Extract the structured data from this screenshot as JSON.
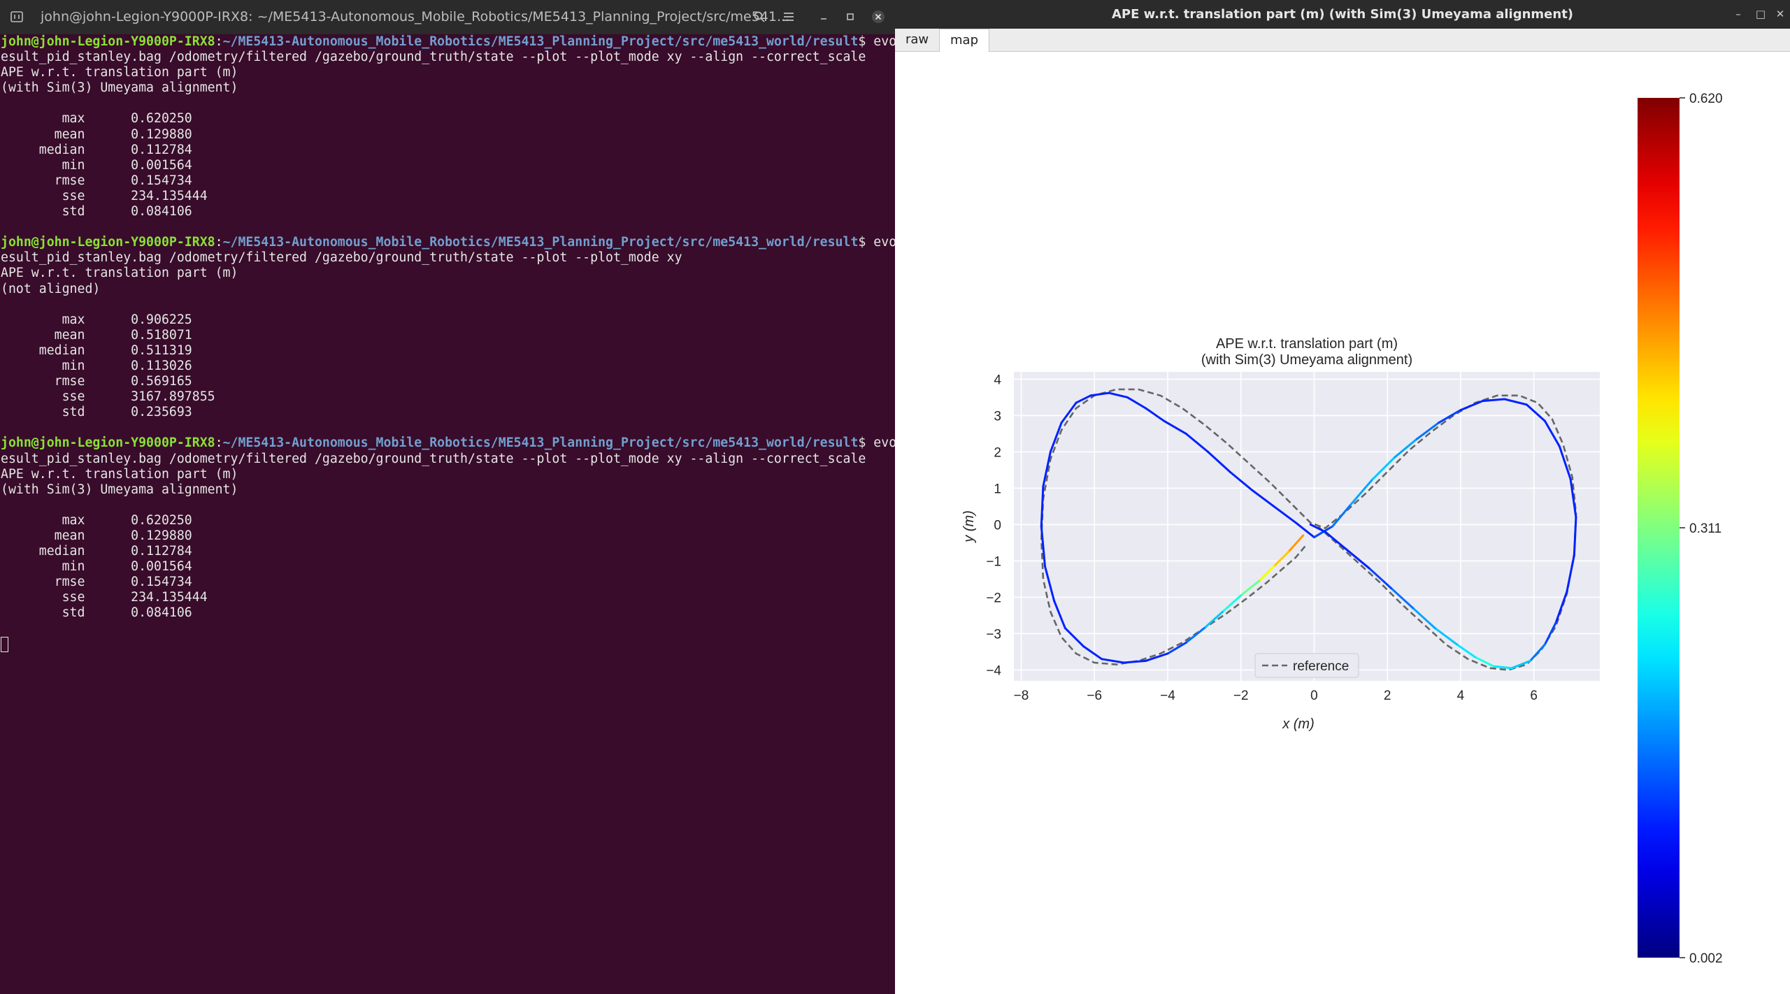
{
  "terminal": {
    "title": "john@john-Legion-Y9000P-IRX8: ~/ME5413-Autonomous_Mobile_Robotics/ME5413_Planning_Project/src/me541...",
    "prompt_user": "john@john-Legion-Y9000P-IRX8",
    "prompt_path": "~/ME5413-Autonomous_Mobile_Robotics/ME5413_Planning_Project/src/me5413_world/result",
    "blocks": [
      {
        "command": "evo_ape bag result_pid_stanley.bag /odometry/filtered /gazebo/ground_truth/state --plot --plot_mode xy --align --correct_scale",
        "header1": "APE w.r.t. translation part (m)",
        "header2": "(with Sim(3) Umeyama alignment)",
        "stats": [
          [
            "max",
            "0.620250"
          ],
          [
            "mean",
            "0.129880"
          ],
          [
            "median",
            "0.112784"
          ],
          [
            "min",
            "0.001564"
          ],
          [
            "rmse",
            "0.154734"
          ],
          [
            "sse",
            "234.135444"
          ],
          [
            "std",
            "0.084106"
          ]
        ]
      },
      {
        "command": "evo_ape bag result_pid_stanley.bag /odometry/filtered /gazebo/ground_truth/state --plot --plot_mode xy",
        "header1": "APE w.r.t. translation part (m)",
        "header2": "(not aligned)",
        "stats": [
          [
            "max",
            "0.906225"
          ],
          [
            "mean",
            "0.518071"
          ],
          [
            "median",
            "0.511319"
          ],
          [
            "min",
            "0.113026"
          ],
          [
            "rmse",
            "0.569165"
          ],
          [
            "sse",
            "3167.897855"
          ],
          [
            "std",
            "0.235693"
          ]
        ]
      },
      {
        "command": "evo_ape bag result_pid_stanley.bag /odometry/filtered /gazebo/ground_truth/state --plot --plot_mode xy --align --correct_scale",
        "header1": "APE w.r.t. translation part (m)",
        "header2": "(with Sim(3) Umeyama alignment)",
        "stats": [
          [
            "max",
            "0.620250"
          ],
          [
            "mean",
            "0.129880"
          ],
          [
            "median",
            "0.112784"
          ],
          [
            "min",
            "0.001564"
          ],
          [
            "rmse",
            "0.154734"
          ],
          [
            "sse",
            "234.135444"
          ],
          [
            "std",
            "0.084106"
          ]
        ]
      }
    ]
  },
  "plot_window": {
    "title": "APE w.r.t. translation part (m) (with Sim(3) Umeyama alignment)",
    "tabs": [
      "raw",
      "map"
    ],
    "selected_tab": "map"
  },
  "chart_data": {
    "type": "line",
    "title": "APE w.r.t. translation part (m)",
    "subtitle": "(with Sim(3) Umeyama alignment)",
    "xlabel": "x (m)",
    "ylabel": "y (m)",
    "xlim": [
      -8.2,
      7.8
    ],
    "ylim": [
      -4.3,
      4.2
    ],
    "xticks": [
      -8,
      -6,
      -4,
      -2,
      0,
      2,
      4,
      6
    ],
    "yticks": [
      4,
      3,
      2,
      1,
      0,
      -1,
      -2,
      -3,
      -4
    ],
    "grid": true,
    "legend": {
      "position": "bottom-center",
      "entries": [
        "reference"
      ]
    },
    "colorbar": {
      "min": 0.002,
      "mid": 0.311,
      "max": 0.62,
      "labels": [
        "0.620",
        "0.311",
        "0.002"
      ],
      "colormap": "jet"
    },
    "series": [
      {
        "name": "reference",
        "style": "dashed",
        "color": "#666666",
        "x": [
          -0.25,
          -0.5,
          -0.9,
          -1.3,
          -1.8,
          -2.4,
          -3.0,
          -3.6,
          -4.2,
          -4.8,
          -5.4,
          -6.0,
          -6.5,
          -6.9,
          -7.2,
          -7.4,
          -7.45,
          -7.4,
          -7.2,
          -6.9,
          -6.5,
          -6.0,
          -5.4,
          -4.8,
          -4.2,
          -3.6,
          -3.0,
          -2.4,
          -1.8,
          -1.2,
          -0.6,
          -0.1,
          0.3,
          0.8,
          1.4,
          2.0,
          2.6,
          3.2,
          3.8,
          4.4,
          5.0,
          5.6,
          6.1,
          6.5,
          6.8,
          7.05,
          7.15,
          7.1,
          6.9,
          6.6,
          6.2,
          5.8,
          5.3,
          4.8,
          4.2,
          3.6,
          3.0,
          2.4,
          1.8,
          1.2,
          0.6,
          0.1
        ],
        "y": [
          -0.6,
          -0.9,
          -1.25,
          -1.6,
          -2.0,
          -2.45,
          -2.85,
          -3.25,
          -3.55,
          -3.75,
          -3.85,
          -3.8,
          -3.55,
          -3.1,
          -2.4,
          -1.5,
          -0.4,
          0.7,
          1.8,
          2.6,
          3.2,
          3.55,
          3.72,
          3.72,
          3.55,
          3.2,
          2.75,
          2.25,
          1.7,
          1.15,
          0.55,
          0.05,
          -0.1,
          0.3,
          0.85,
          1.45,
          2.05,
          2.55,
          3.0,
          3.35,
          3.55,
          3.55,
          3.35,
          2.9,
          2.2,
          1.3,
          0.3,
          -0.8,
          -1.9,
          -2.8,
          -3.45,
          -3.85,
          -4.0,
          -3.95,
          -3.7,
          -3.3,
          -2.75,
          -2.2,
          -1.6,
          -1.05,
          -0.5,
          -0.05
        ]
      },
      {
        "name": "",
        "style": "solid",
        "color_by_error": true,
        "x": [
          -0.3,
          -0.7,
          -1.1,
          -1.5,
          -2.0,
          -2.5,
          -3.0,
          -3.5,
          -4.0,
          -4.6,
          -5.2,
          -5.8,
          -6.3,
          -6.8,
          -7.1,
          -7.35,
          -7.45,
          -7.4,
          -7.2,
          -6.9,
          -6.5,
          -6.1,
          -5.6,
          -5.1,
          -4.6,
          -4.1,
          -3.5,
          -2.9,
          -2.3,
          -1.7,
          -1.1,
          -0.5,
          0.0,
          0.5,
          1.0,
          1.6,
          2.2,
          2.8,
          3.4,
          4.0,
          4.6,
          5.2,
          5.8,
          6.3,
          6.7,
          7.0,
          7.15,
          7.1,
          6.9,
          6.6,
          6.3,
          5.9,
          5.4,
          4.9,
          4.4,
          3.9,
          3.3,
          2.7,
          2.1,
          1.5,
          0.9,
          0.3,
          -0.1
        ],
        "y": [
          -0.3,
          -0.75,
          -1.15,
          -1.55,
          -1.95,
          -2.4,
          -2.85,
          -3.25,
          -3.55,
          -3.75,
          -3.8,
          -3.7,
          -3.35,
          -2.85,
          -2.1,
          -1.15,
          -0.05,
          1.05,
          2.0,
          2.8,
          3.35,
          3.55,
          3.62,
          3.5,
          3.2,
          2.85,
          2.5,
          2.0,
          1.45,
          0.95,
          0.5,
          0.05,
          -0.35,
          -0.05,
          0.55,
          1.25,
          1.85,
          2.35,
          2.8,
          3.15,
          3.4,
          3.45,
          3.3,
          2.85,
          2.15,
          1.25,
          0.2,
          -0.85,
          -1.85,
          -2.7,
          -3.3,
          -3.75,
          -3.95,
          -3.9,
          -3.65,
          -3.3,
          -2.85,
          -2.3,
          -1.75,
          -1.2,
          -0.7,
          -0.2,
          0.0
        ],
        "error": [
          0.45,
          0.42,
          0.38,
          0.3,
          0.25,
          0.2,
          0.15,
          0.12,
          0.1,
          0.1,
          0.1,
          0.1,
          0.1,
          0.1,
          0.1,
          0.1,
          0.1,
          0.1,
          0.1,
          0.1,
          0.1,
          0.1,
          0.1,
          0.1,
          0.1,
          0.1,
          0.1,
          0.1,
          0.1,
          0.1,
          0.1,
          0.1,
          0.12,
          0.15,
          0.18,
          0.2,
          0.18,
          0.15,
          0.12,
          0.1,
          0.1,
          0.1,
          0.1,
          0.1,
          0.1,
          0.1,
          0.1,
          0.1,
          0.1,
          0.12,
          0.15,
          0.2,
          0.22,
          0.25,
          0.22,
          0.2,
          0.18,
          0.15,
          0.12,
          0.1,
          0.1,
          0.1,
          0.1
        ]
      }
    ]
  }
}
